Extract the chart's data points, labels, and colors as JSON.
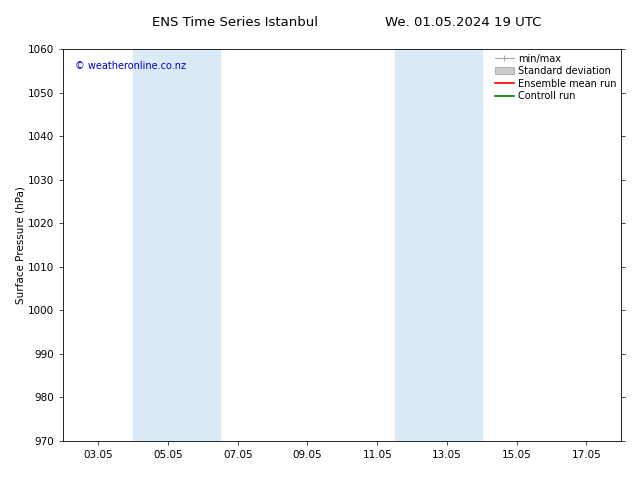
{
  "title_left": "ENS Time Series Istanbul",
  "title_right": "We. 01.05.2024 19 UTC",
  "ylabel": "Surface Pressure (hPa)",
  "ylim": [
    970,
    1060
  ],
  "yticks": [
    970,
    980,
    990,
    1000,
    1010,
    1020,
    1030,
    1040,
    1050,
    1060
  ],
  "xtick_labels": [
    "03.05",
    "05.05",
    "07.05",
    "09.05",
    "11.05",
    "13.05",
    "15.05",
    "17.05"
  ],
  "xtick_positions": [
    2,
    4,
    6,
    8,
    10,
    12,
    14,
    16
  ],
  "xlim": [
    1,
    17
  ],
  "shade_bands": [
    {
      "xmin": 3.0,
      "xmax": 5.5
    },
    {
      "xmin": 10.5,
      "xmax": 13.0
    }
  ],
  "shade_color": "#daeaf7",
  "watermark": "© weatheronline.co.nz",
  "watermark_color": "#0000cc",
  "legend_labels": [
    "min/max",
    "Standard deviation",
    "Ensemble mean run",
    "Controll run"
  ],
  "minmax_color": "#aaaaaa",
  "std_color": "#cccccc",
  "ens_color": "#ff0000",
  "ctrl_color": "#008800",
  "bg_color": "#ffffff",
  "title_fontsize": 9.5,
  "tick_label_fontsize": 7.5,
  "axis_label_fontsize": 7.5,
  "legend_fontsize": 7,
  "watermark_fontsize": 7
}
